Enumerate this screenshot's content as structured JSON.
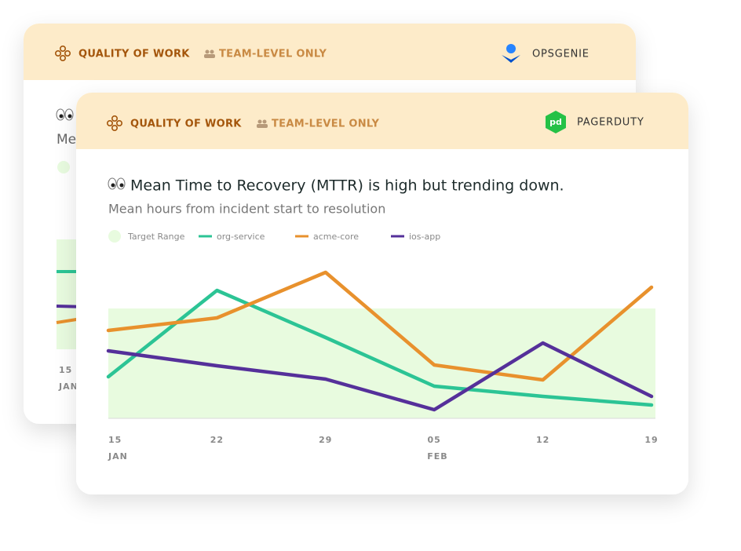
{
  "back_card": {
    "header": {
      "category": "QUALITY OF WORK",
      "scope": "TEAM-LEVEL ONLY",
      "source": "OPSGENIE"
    },
    "title_fragment": "Me",
    "x_label": "15",
    "x_sublabel": "JAN"
  },
  "front_card": {
    "header": {
      "category": "QUALITY OF WORK",
      "scope": "TEAM-LEVEL ONLY",
      "source": "PAGERDUTY"
    }
  },
  "chart_data": {
    "type": "line",
    "title": "Mean Time to Recovery (MTTR) is high but trending down.",
    "subtitle": "Mean hours from incident start to resolution",
    "categories": [
      "15",
      "22",
      "29",
      "05",
      "12",
      "19"
    ],
    "category_sublabels": [
      "JAN",
      null,
      null,
      "FEB",
      null,
      null
    ],
    "target_range": {
      "name": "Target Range",
      "color": "#e8fbdf",
      "values": [
        0,
        7
      ]
    },
    "series": [
      {
        "name": "org-service",
        "color": "#2cc495",
        "values": [
          2.65,
          8.15,
          5.15,
          2.05,
          1.4,
          0.85
        ]
      },
      {
        "name": "acme-core",
        "color": "#e8912d",
        "values": [
          5.6,
          6.4,
          9.3,
          3.4,
          2.45,
          8.35
        ]
      },
      {
        "name": "ios-app",
        "color": "#55309a",
        "values": [
          4.3,
          3.35,
          2.5,
          0.55,
          4.8,
          1.4
        ]
      }
    ],
    "ylim": [
      0,
      10
    ]
  }
}
